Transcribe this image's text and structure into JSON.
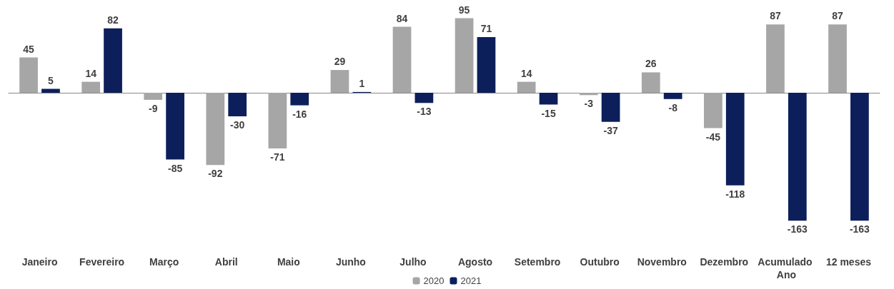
{
  "chart_data": {
    "type": "bar",
    "categories": [
      "Janeiro",
      "Fevereiro",
      "Março",
      "Abril",
      "Maio",
      "Junho",
      "Julho",
      "Agosto",
      "Setembro",
      "Outubro",
      "Novembro",
      "Dezembro",
      "Acumulado Ano",
      "12 meses"
    ],
    "series": [
      {
        "name": "2020",
        "color": "#a6a6a6",
        "values": [
          45,
          14,
          -9,
          -92,
          -71,
          29,
          84,
          95,
          14,
          -3,
          26,
          -45,
          87,
          87
        ]
      },
      {
        "name": "2021",
        "color": "#0c1f5b",
        "values": [
          5,
          82,
          -85,
          -30,
          -16,
          1,
          -13,
          71,
          -15,
          -37,
          -8,
          -118,
          -163,
          -163
        ]
      }
    ],
    "data_labels": true,
    "legend": "bottom"
  }
}
